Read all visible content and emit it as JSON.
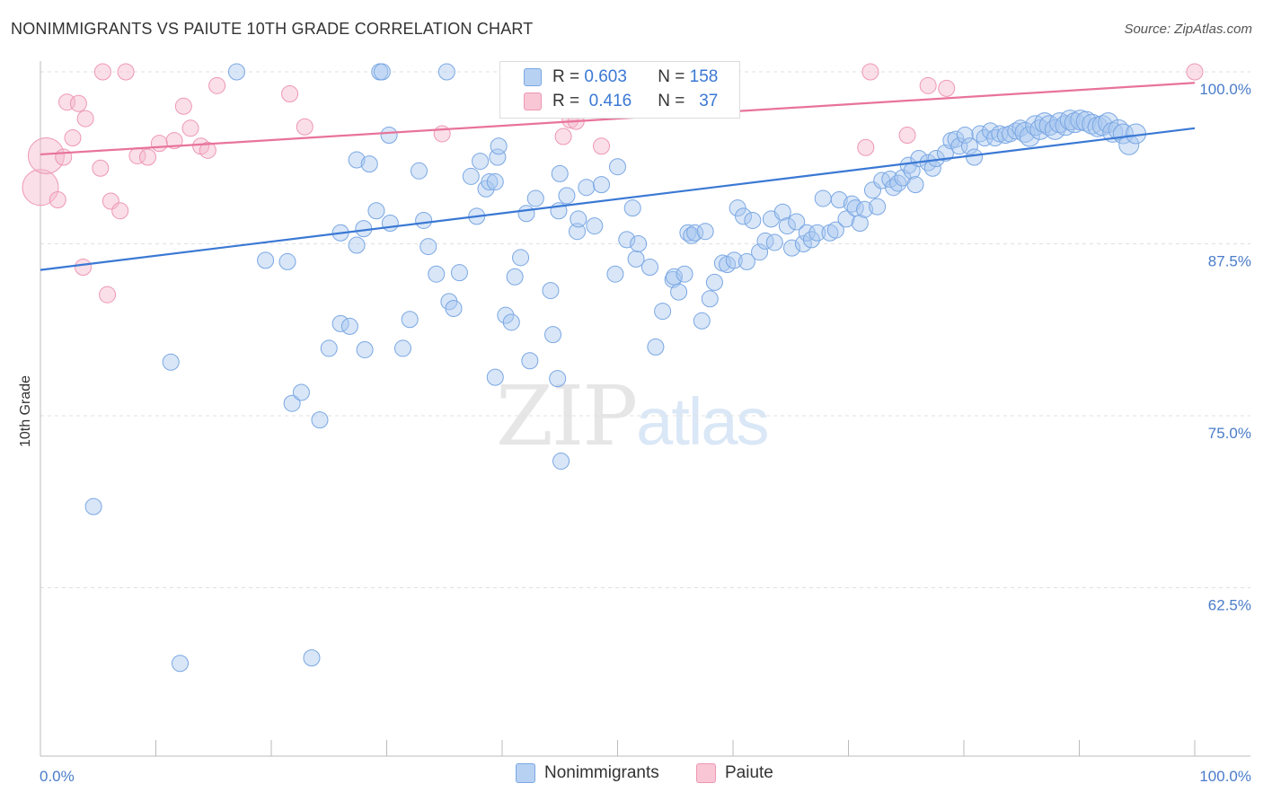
{
  "title": "NONIMMIGRANTS VS PAIUTE 10TH GRADE CORRELATION CHART",
  "source": "Source: ZipAtlas.com",
  "watermark": {
    "zip": "ZIP",
    "atlas": "atlas"
  },
  "legend": {
    "rows": [
      {
        "r_label": "R =",
        "r_value": "0.603",
        "n_label": "N =",
        "n_value": "158"
      },
      {
        "r_label": "R =",
        "r_value": "0.416",
        "n_label": "N =",
        "n_value": "37"
      }
    ]
  },
  "bottom_legend": {
    "series1": "Nonimmigrants",
    "series2": "Paiute"
  },
  "colors": {
    "blue": "#3a78d4",
    "blue_fill": "#a9c8f0",
    "pink": "#e8739a",
    "pink_fill": "#f5b8cb",
    "grid": "#e0e0e0",
    "tick_text": "#4a7cc9"
  },
  "chart_data": {
    "type": "scatter",
    "title": "NONIMMIGRANTS VS PAIUTE 10TH GRADE CORRELATION CHART",
    "xlabel": "",
    "ylabel": "10th Grade",
    "xlim": [
      0,
      100
    ],
    "ylim": [
      52.5,
      100.8
    ],
    "x_tick_labels": [
      "0.0%",
      "100.0%"
    ],
    "y_ticks": [
      62.5,
      75.0,
      87.5,
      100.0
    ],
    "y_tick_labels": [
      "62.5%",
      "75.0%",
      "87.5%",
      "100.0%"
    ],
    "grid": "horizontal dashed",
    "legend_placement": "top-center",
    "series": [
      {
        "name": "Nonimmigrants",
        "color": "#3a78d4",
        "R": 0.603,
        "N": 158,
        "trend": {
          "x": [
            0,
            100
          ],
          "y": [
            85.6,
            95.9
          ]
        },
        "points": [
          [
            4.6,
            68.4
          ],
          [
            11.3,
            78.9
          ],
          [
            12.1,
            57.0
          ],
          [
            17.0,
            100
          ],
          [
            19.5,
            86.3
          ],
          [
            21.4,
            86.2
          ],
          [
            21.8,
            75.9
          ],
          [
            22.6,
            76.7
          ],
          [
            23.5,
            57.4
          ],
          [
            24.2,
            74.7
          ],
          [
            25.0,
            79.9
          ],
          [
            26.0,
            81.7
          ],
          [
            26.0,
            88.3
          ],
          [
            26.8,
            81.5
          ],
          [
            27.4,
            87.4
          ],
          [
            27.4,
            93.6
          ],
          [
            28.0,
            88.6
          ],
          [
            28.1,
            79.8
          ],
          [
            28.5,
            93.3
          ],
          [
            29.1,
            89.9
          ],
          [
            29.4,
            100
          ],
          [
            29.6,
            100
          ],
          [
            30.2,
            95.4
          ],
          [
            30.3,
            89.0
          ],
          [
            31.4,
            79.9
          ],
          [
            32.0,
            82.0
          ],
          [
            32.8,
            92.8
          ],
          [
            33.2,
            89.2
          ],
          [
            33.6,
            87.3
          ],
          [
            34.3,
            85.3
          ],
          [
            35.2,
            100
          ],
          [
            35.4,
            83.3
          ],
          [
            35.8,
            82.8
          ],
          [
            36.3,
            85.4
          ],
          [
            37.3,
            92.4
          ],
          [
            37.8,
            89.5
          ],
          [
            38.1,
            93.5
          ],
          [
            38.6,
            91.5
          ],
          [
            38.9,
            92.0
          ],
          [
            39.4,
            92.0
          ],
          [
            39.4,
            77.8
          ],
          [
            39.6,
            93.8
          ],
          [
            39.7,
            94.6
          ],
          [
            40.3,
            82.3
          ],
          [
            40.8,
            81.8
          ],
          [
            41.1,
            85.1
          ],
          [
            41.6,
            86.5
          ],
          [
            42.1,
            89.7
          ],
          [
            42.4,
            79.0
          ],
          [
            42.9,
            90.8
          ],
          [
            44.2,
            84.1
          ],
          [
            44.4,
            80.9
          ],
          [
            44.8,
            77.7
          ],
          [
            44.9,
            89.9
          ],
          [
            45.0,
            92.6
          ],
          [
            45.1,
            71.7
          ],
          [
            45.6,
            91.0
          ],
          [
            46.5,
            88.4
          ],
          [
            46.6,
            89.3
          ],
          [
            47.3,
            91.6
          ],
          [
            48.0,
            88.8
          ],
          [
            48.6,
            91.8
          ],
          [
            49.8,
            85.3
          ],
          [
            50.0,
            93.1
          ],
          [
            50.8,
            87.8
          ],
          [
            51.3,
            90.1
          ],
          [
            51.6,
            86.4
          ],
          [
            51.8,
            87.5
          ],
          [
            52.8,
            85.8
          ],
          [
            53.3,
            80.0
          ],
          [
            53.9,
            82.6
          ],
          [
            54.8,
            84.9
          ],
          [
            54.9,
            85.1
          ],
          [
            55.3,
            84.0
          ],
          [
            55.8,
            85.3
          ],
          [
            56.1,
            88.3
          ],
          [
            56.4,
            88.1
          ],
          [
            56.7,
            88.3
          ],
          [
            57.3,
            81.9
          ],
          [
            57.6,
            88.4
          ],
          [
            58.0,
            83.5
          ],
          [
            58.4,
            84.7
          ],
          [
            59.1,
            86.1
          ],
          [
            59.5,
            86.0
          ],
          [
            60.1,
            86.3
          ],
          [
            60.4,
            90.1
          ],
          [
            60.9,
            89.5
          ],
          [
            61.2,
            86.2
          ],
          [
            61.7,
            89.2
          ],
          [
            62.3,
            86.9
          ],
          [
            62.8,
            87.7
          ],
          [
            63.3,
            89.3
          ],
          [
            63.6,
            87.6
          ],
          [
            64.3,
            89.8
          ],
          [
            64.7,
            88.8
          ],
          [
            65.1,
            87.2
          ],
          [
            65.5,
            89.1
          ],
          [
            66.1,
            87.5
          ],
          [
            66.4,
            88.3
          ],
          [
            66.8,
            87.8
          ],
          [
            67.3,
            88.3
          ],
          [
            67.8,
            90.8
          ],
          [
            68.4,
            88.3
          ],
          [
            68.9,
            88.5
          ],
          [
            69.2,
            90.7
          ],
          [
            69.8,
            89.3
          ],
          [
            70.3,
            90.4
          ],
          [
            70.6,
            90.1
          ],
          [
            71.0,
            89.0
          ],
          [
            71.4,
            90.0
          ],
          [
            72.1,
            91.4
          ],
          [
            72.5,
            90.2
          ],
          [
            72.9,
            92.1
          ],
          [
            73.6,
            92.2
          ],
          [
            73.9,
            91.6
          ],
          [
            74.3,
            91.9
          ],
          [
            74.7,
            92.3
          ],
          [
            75.2,
            93.2
          ],
          [
            75.5,
            92.8
          ],
          [
            75.8,
            91.8
          ],
          [
            76.1,
            93.7
          ],
          [
            76.9,
            93.4
          ],
          [
            77.3,
            93.0
          ],
          [
            77.6,
            93.7
          ],
          [
            78.4,
            94.1
          ],
          [
            78.9,
            95.0
          ],
          [
            79.3,
            95.1
          ],
          [
            79.6,
            94.6
          ],
          [
            80.1,
            95.4
          ],
          [
            80.5,
            94.6
          ],
          [
            80.9,
            93.8
          ],
          [
            81.4,
            95.5
          ],
          [
            81.8,
            95.2
          ],
          [
            82.3,
            95.7
          ],
          [
            82.7,
            95.2
          ],
          [
            83.1,
            95.5
          ],
          [
            83.6,
            95.4
          ],
          [
            84.0,
            95.5
          ],
          [
            84.5,
            95.7
          ],
          [
            84.9,
            95.9
          ],
          [
            85.3,
            95.6
          ],
          [
            85.7,
            95.3
          ],
          [
            86.2,
            96.1
          ],
          [
            86.6,
            95.8
          ],
          [
            87.0,
            96.3
          ],
          [
            87.4,
            96.1
          ],
          [
            87.9,
            95.8
          ],
          [
            88.3,
            96.3
          ],
          [
            88.8,
            96.1
          ],
          [
            89.2,
            96.5
          ],
          [
            89.6,
            96.3
          ],
          [
            90.1,
            96.5
          ],
          [
            90.6,
            96.4
          ],
          [
            91.1,
            96.2
          ],
          [
            91.6,
            96.0
          ],
          [
            92.0,
            96.1
          ],
          [
            92.5,
            96.3
          ],
          [
            92.9,
            95.6
          ],
          [
            93.4,
            95.8
          ],
          [
            93.8,
            95.5
          ],
          [
            94.3,
            94.7
          ],
          [
            94.9,
            95.5
          ]
        ]
      },
      {
        "name": "Paiute",
        "color": "#e8739a",
        "R": 0.416,
        "N": 37,
        "trend": {
          "x": [
            0,
            100
          ],
          "y": [
            94.0,
            99.2
          ]
        },
        "points": [
          [
            0.0,
            91.6
          ],
          [
            0.5,
            93.9
          ],
          [
            1.5,
            90.7
          ],
          [
            2.0,
            93.8
          ],
          [
            2.3,
            97.8
          ],
          [
            2.8,
            95.2
          ],
          [
            3.3,
            97.7
          ],
          [
            3.7,
            85.8
          ],
          [
            3.9,
            96.6
          ],
          [
            5.2,
            93.0
          ],
          [
            5.4,
            100
          ],
          [
            5.8,
            83.8
          ],
          [
            6.1,
            90.6
          ],
          [
            6.9,
            89.9
          ],
          [
            7.4,
            100
          ],
          [
            8.4,
            93.9
          ],
          [
            9.3,
            93.8
          ],
          [
            10.3,
            94.8
          ],
          [
            11.6,
            95.0
          ],
          [
            12.4,
            97.5
          ],
          [
            13.0,
            95.9
          ],
          [
            13.9,
            94.6
          ],
          [
            14.5,
            94.3
          ],
          [
            15.3,
            99.0
          ],
          [
            21.6,
            98.4
          ],
          [
            22.9,
            96.0
          ],
          [
            34.8,
            95.5
          ],
          [
            45.3,
            95.3
          ],
          [
            45.9,
            96.5
          ],
          [
            46.4,
            96.4
          ],
          [
            48.6,
            94.6
          ],
          [
            71.5,
            94.5
          ],
          [
            71.9,
            100
          ],
          [
            75.1,
            95.4
          ],
          [
            76.9,
            99.0
          ],
          [
            78.5,
            98.8
          ],
          [
            100.0,
            100
          ]
        ]
      }
    ]
  }
}
